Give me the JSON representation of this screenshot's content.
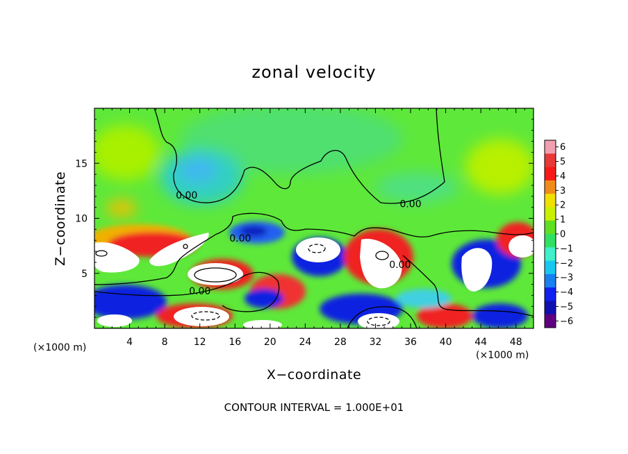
{
  "chart_data": {
    "type": "heatmap",
    "title": "zonal velocity",
    "xlabel": "X−coordinate",
    "ylabel": "Z−coordinate",
    "x_unit_label_left": "(×1000 m)",
    "x_unit_label_right": "(×1000 m)",
    "xlim": [
      0,
      50
    ],
    "ylim": [
      0,
      20
    ],
    "xticks": [
      4,
      8,
      12,
      16,
      20,
      24,
      28,
      32,
      36,
      40,
      44,
      48
    ],
    "yticks": [
      5,
      10,
      15
    ],
    "colorbar": {
      "ticks": [
        6,
        5,
        4,
        3,
        2,
        1,
        0,
        -1,
        -2,
        -3,
        -4,
        -5,
        -6
      ],
      "tick_labels": [
        "6",
        "5",
        "4",
        "3",
        "2",
        "1",
        "0",
        "−1",
        "−2",
        "−3",
        "−4",
        "−5",
        "−6"
      ],
      "range": [
        -6,
        6
      ],
      "colors": [
        "#f0a0b0",
        "#e83838",
        "#f81818",
        "#f08c18",
        "#f0e000",
        "#c8f000",
        "#60e020",
        "#30e060",
        "#40f0c8",
        "#18c8f0",
        "#1880f0",
        "#1020f0",
        "#1010b0",
        "#600080"
      ],
      "out_of_range_color": "#ffffff"
    },
    "contour_labels": [
      {
        "text": "0.00",
        "x": 10.5,
        "y": 11.8
      },
      {
        "text": "0.00",
        "x": 36.0,
        "y": 11.0
      },
      {
        "text": "0.00",
        "x": 16.6,
        "y": 7.9
      },
      {
        "text": "0.00",
        "x": 34.8,
        "y": 5.5
      },
      {
        "text": "0.00",
        "x": 12.0,
        "y": 3.1
      }
    ],
    "features": {
      "upper_field": "mostly green, near 0",
      "weak_negative_center": {
        "x": 12,
        "y": 14,
        "color": "#30d0e8"
      },
      "lower_band_z_below": 9
    },
    "contour_interval_text": "CONTOUR INTERVAL = 1.000E+01"
  }
}
